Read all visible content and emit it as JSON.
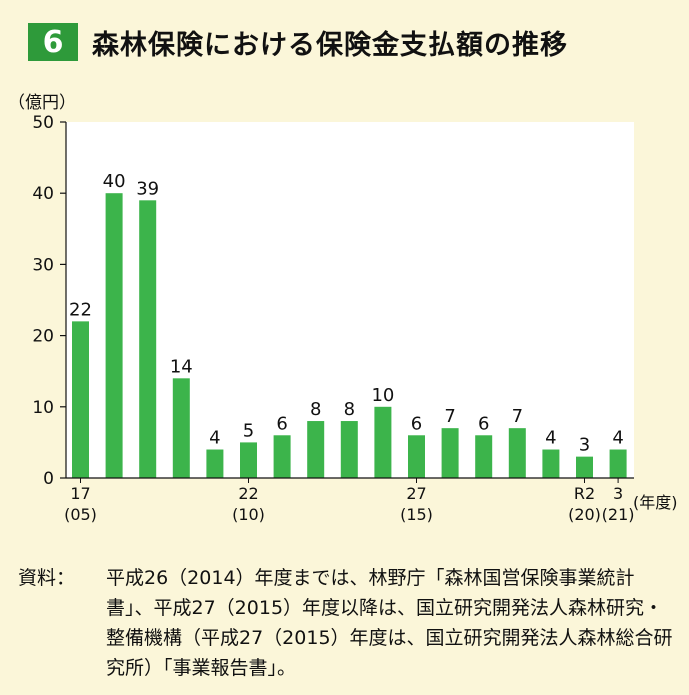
{
  "header": {
    "number": "6",
    "title": "森林保険における保険金支払額の推移"
  },
  "chart_data": {
    "type": "bar",
    "ylabel": "（億円）",
    "xlabel": "(年度)",
    "ylim": [
      0,
      50
    ],
    "yticks": [
      0,
      10,
      20,
      30,
      40,
      50
    ],
    "bar_color": "#3cb44b",
    "values": [
      22,
      40,
      39,
      14,
      4,
      5,
      6,
      8,
      8,
      10,
      6,
      7,
      6,
      7,
      4,
      3,
      4
    ],
    "x_tick_labels": [
      {
        "index": 0,
        "line1": "17",
        "line2": "(05)"
      },
      {
        "index": 5,
        "line1": "22",
        "line2": "(10)"
      },
      {
        "index": 10,
        "line1": "27",
        "line2": "(15)"
      },
      {
        "index": 15,
        "line1": "R2",
        "line2": "(20)"
      },
      {
        "index": 16,
        "line1": "3",
        "line2": "(21)"
      }
    ]
  },
  "note": {
    "label": "資料：",
    "text": "平成26（2014）年度までは、林野庁「森林国営保険事業統計書」、平成27（2015）年度以降は、国立研究開発法人森林研究・整備機構（平成27（2015）年度は、国立研究開発法人森林総合研究所）「事業報告書」。"
  }
}
